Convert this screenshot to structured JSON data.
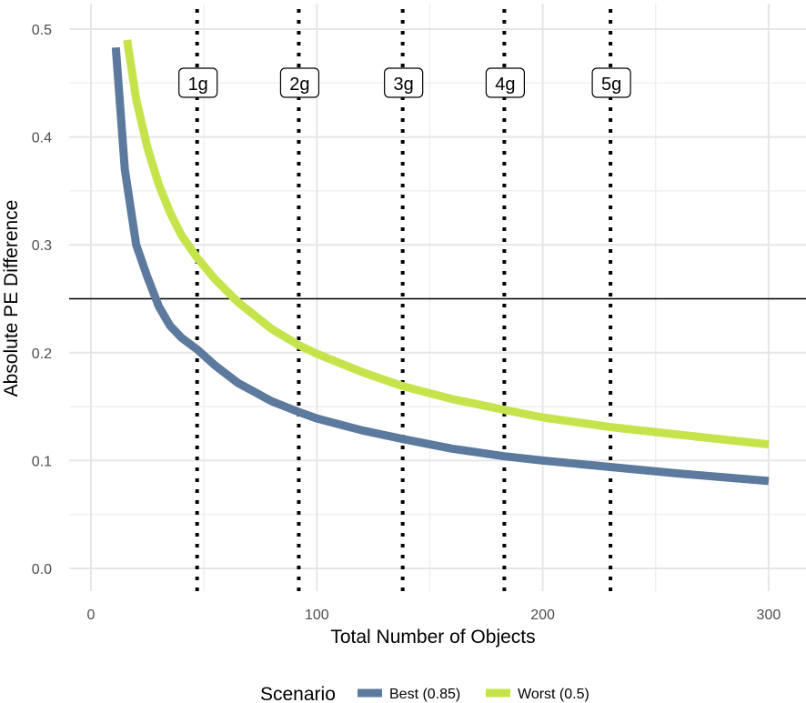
{
  "chart_data": {
    "type": "line",
    "title": "",
    "xlabel": "Total Number of Objects",
    "ylabel": "Absolute PE Difference",
    "xlim": [
      -10,
      305
    ],
    "ylim": [
      -0.01,
      0.505
    ],
    "x_ticks": [
      0,
      100,
      200,
      300
    ],
    "x_tick_labels": [
      "0",
      "100",
      "200",
      "300"
    ],
    "y_ticks": [
      0.0,
      0.1,
      0.2,
      0.3,
      0.4,
      0.5
    ],
    "y_tick_labels": [
      "0.0",
      "0.1",
      "0.2",
      "0.3",
      "0.4",
      "0.5"
    ],
    "grid": true,
    "legend_position": "bottom",
    "legend_title": "Scenario",
    "hline": {
      "y": 0.25,
      "color": "#000000"
    },
    "vlines": [
      {
        "x": 47,
        "label": "1g"
      },
      {
        "x": 92,
        "label": "2g"
      },
      {
        "x": 138,
        "label": "3g"
      },
      {
        "x": 183,
        "label": "4g"
      },
      {
        "x": 230,
        "label": "5g"
      }
    ],
    "series": [
      {
        "name": "Best (0.85)",
        "color": "#5b7a9d",
        "x": [
          11,
          15,
          20,
          25,
          30,
          35,
          40,
          47,
          55,
          65,
          80,
          92,
          100,
          120,
          138,
          160,
          183,
          200,
          230,
          260,
          300
        ],
        "y": [
          0.483,
          0.37,
          0.3,
          0.27,
          0.243,
          0.225,
          0.214,
          0.203,
          0.188,
          0.172,
          0.155,
          0.145,
          0.139,
          0.128,
          0.12,
          0.111,
          0.104,
          0.1,
          0.094,
          0.088,
          0.081
        ]
      },
      {
        "name": "Worst (0.5)",
        "color": "#c5e44c",
        "x": [
          16,
          20,
          25,
          30,
          35,
          40,
          47,
          55,
          65,
          80,
          92,
          100,
          120,
          138,
          160,
          183,
          200,
          230,
          260,
          300
        ],
        "y": [
          0.49,
          0.435,
          0.39,
          0.356,
          0.33,
          0.309,
          0.288,
          0.268,
          0.247,
          0.222,
          0.207,
          0.199,
          0.182,
          0.169,
          0.157,
          0.147,
          0.14,
          0.131,
          0.124,
          0.115
        ]
      }
    ]
  }
}
